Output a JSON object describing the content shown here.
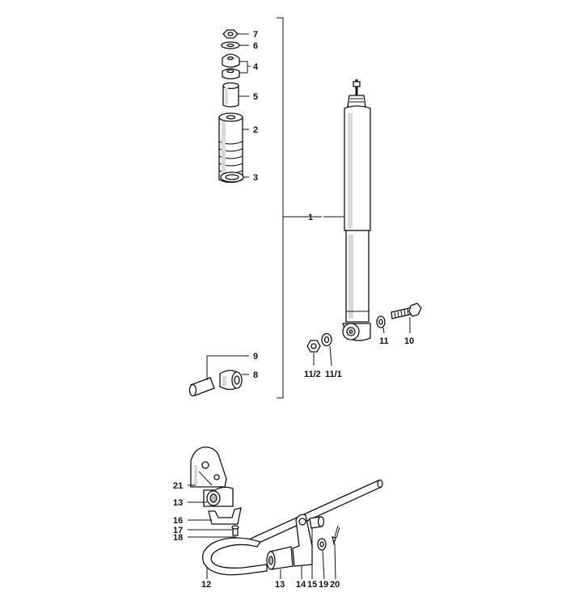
{
  "callouts": [
    {
      "id": "c7",
      "label": "7"
    },
    {
      "id": "c6",
      "label": "6"
    },
    {
      "id": "c4",
      "label": "4"
    },
    {
      "id": "c5",
      "label": "5"
    },
    {
      "id": "c2",
      "label": "2"
    },
    {
      "id": "c3",
      "label": "3"
    },
    {
      "id": "c1",
      "label": "1"
    },
    {
      "id": "c9",
      "label": "9"
    },
    {
      "id": "c8",
      "label": "8"
    },
    {
      "id": "c11",
      "label": "11"
    },
    {
      "id": "c10",
      "label": "10"
    },
    {
      "id": "c11_2",
      "label": "11/2"
    },
    {
      "id": "c11_1",
      "label": "11/1"
    },
    {
      "id": "c21",
      "label": "21"
    },
    {
      "id": "c13a",
      "label": "13"
    },
    {
      "id": "c16",
      "label": "16"
    },
    {
      "id": "c17",
      "label": "17"
    },
    {
      "id": "c18",
      "label": "18"
    },
    {
      "id": "c12",
      "label": "12"
    },
    {
      "id": "c13b",
      "label": "13"
    },
    {
      "id": "c14",
      "label": "14"
    },
    {
      "id": "c15",
      "label": "15"
    },
    {
      "id": "c19",
      "label": "19"
    },
    {
      "id": "c20",
      "label": "20"
    }
  ]
}
